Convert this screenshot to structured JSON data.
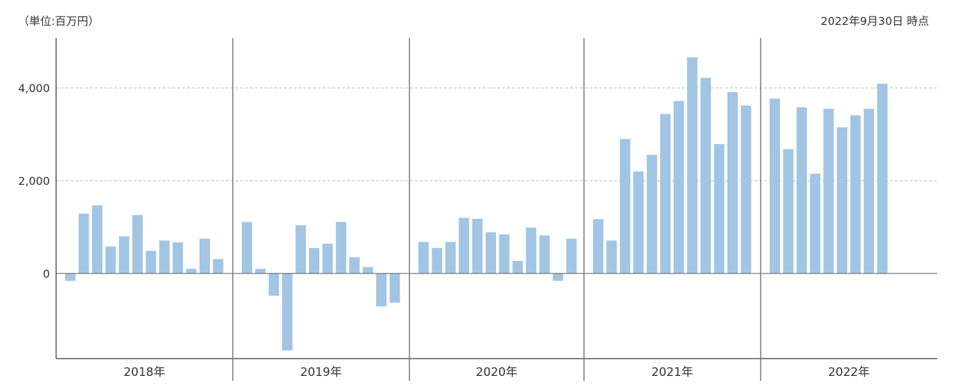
{
  "header": {
    "unit": "（単位:百万円）",
    "as_of": "2022年9月30日 時点"
  },
  "chart_data": {
    "type": "bar",
    "title": "",
    "xlabel": "",
    "ylabel": "",
    "unit": "百万円",
    "ylim": [
      -1850,
      5050
    ],
    "yticks": [
      0,
      2000,
      4000
    ],
    "ytick_labels": [
      "0",
      "2,000",
      "4,000"
    ],
    "grid": "horizontal-dashed",
    "bar_color": "#a3c5e4",
    "groups": [
      {
        "label": "2018年",
        "values": [
          -160,
          1290,
          1470,
          580,
          800,
          1260,
          490,
          710,
          670,
          100,
          750,
          310
        ]
      },
      {
        "label": "2019年",
        "values": [
          1110,
          100,
          -480,
          -1660,
          1040,
          550,
          640,
          1110,
          350,
          140,
          -710,
          -630
        ]
      },
      {
        "label": "2020年",
        "values": [
          680,
          550,
          680,
          1200,
          1180,
          890,
          840,
          270,
          990,
          820,
          -160,
          750
        ]
      },
      {
        "label": "2021年",
        "values": [
          1170,
          710,
          2900,
          2200,
          2560,
          3440,
          3720,
          4660,
          4220,
          2790,
          3910,
          3620
        ]
      },
      {
        "label": "2022年",
        "values": [
          3770,
          2680,
          3580,
          2150,
          3550,
          3150,
          3410,
          3550,
          4090
        ]
      }
    ]
  }
}
